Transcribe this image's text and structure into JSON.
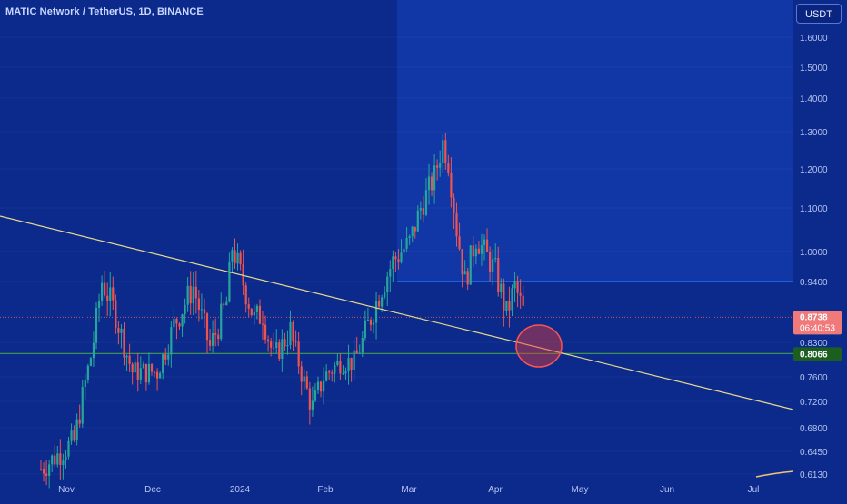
{
  "header": {
    "title": "MATIC Network / TetherUS, 1D, BINANCE",
    "currency_button": "USDT"
  },
  "price_axis": {
    "ticks": [
      "1.6000",
      "1.5000",
      "1.4000",
      "1.3000",
      "1.2000",
      "1.1000",
      "1.0000",
      "0.9400",
      "0.8300",
      "0.7600",
      "0.7200",
      "0.6800",
      "0.6450",
      "0.6130"
    ],
    "current_price": "0.8738",
    "countdown": "06:40:53",
    "support_label": "0.8066"
  },
  "time_axis": {
    "labels": [
      "Nov",
      "Dec",
      "2024",
      "Feb",
      "Mar",
      "Apr",
      "May",
      "Jun",
      "Jul"
    ]
  },
  "colors": {
    "background": "#0b2a8c",
    "highlight_zone": "#1238a8",
    "up_candle": "#26a69a",
    "down_candle": "#ef5350",
    "trendline": "#e8d98a",
    "resistance_line": "#2979ff",
    "support_line": "#2e7d32",
    "support_badge": "#1b5e20",
    "price_badge": "#f07a7a",
    "marker_circle": "#e53935"
  },
  "chart_data": {
    "type": "candlestick",
    "symbol": "MATIC Network / TetherUS",
    "timeframe": "1D",
    "exchange": "BINANCE",
    "scale": "log",
    "y_ticks": [
      1.6,
      1.5,
      1.4,
      1.3,
      1.2,
      1.1,
      1.0,
      0.94,
      0.83,
      0.76,
      0.72,
      0.68,
      0.645,
      0.613
    ],
    "x_labels": [
      "Nov",
      "Dec",
      "2024",
      "Feb",
      "Mar",
      "Apr",
      "May",
      "Jun",
      "Jul"
    ],
    "price_anchors": [
      {
        "date": "2023-10-20",
        "price": 0.62
      },
      {
        "date": "2023-11-01",
        "price": 0.66
      },
      {
        "date": "2023-11-07",
        "price": 0.8
      },
      {
        "date": "2023-11-11",
        "price": 0.94
      },
      {
        "date": "2023-11-16",
        "price": 0.88
      },
      {
        "date": "2023-11-22",
        "price": 0.77
      },
      {
        "date": "2023-12-01",
        "price": 0.77
      },
      {
        "date": "2023-12-07",
        "price": 0.86
      },
      {
        "date": "2023-12-14",
        "price": 0.93
      },
      {
        "date": "2023-12-20",
        "price": 0.82
      },
      {
        "date": "2023-12-26",
        "price": 0.9
      },
      {
        "date": "2023-12-28",
        "price": 1.01
      },
      {
        "date": "2024-01-05",
        "price": 0.87
      },
      {
        "date": "2024-01-08",
        "price": 0.88
      },
      {
        "date": "2024-01-12",
        "price": 0.8
      },
      {
        "date": "2024-01-18",
        "price": 0.85
      },
      {
        "date": "2024-01-23",
        "price": 0.75
      },
      {
        "date": "2024-01-26",
        "price": 0.71
      },
      {
        "date": "2024-01-30",
        "price": 0.76
      },
      {
        "date": "2024-02-05",
        "price": 0.79
      },
      {
        "date": "2024-02-10",
        "price": 0.79
      },
      {
        "date": "2024-02-15",
        "price": 0.86
      },
      {
        "date": "2024-02-20",
        "price": 0.93
      },
      {
        "date": "2024-02-24",
        "price": 0.98
      },
      {
        "date": "2024-03-01",
        "price": 1.02
      },
      {
        "date": "2024-03-05",
        "price": 1.1
      },
      {
        "date": "2024-03-10",
        "price": 1.18
      },
      {
        "date": "2024-03-13",
        "price": 1.27
      },
      {
        "date": "2024-03-15",
        "price": 1.22
      },
      {
        "date": "2024-03-18",
        "price": 1.05
      },
      {
        "date": "2024-03-21",
        "price": 0.94
      },
      {
        "date": "2024-03-25",
        "price": 1.03
      },
      {
        "date": "2024-03-28",
        "price": 1.0
      },
      {
        "date": "2024-04-01",
        "price": 0.96
      },
      {
        "date": "2024-04-05",
        "price": 0.88
      },
      {
        "date": "2024-04-08",
        "price": 0.93
      },
      {
        "date": "2024-04-12",
        "price": 0.87
      }
    ],
    "last_price": 0.8738,
    "horizontal_levels": [
      {
        "price": 0.94,
        "color": "#2979ff"
      },
      {
        "price": 0.8066,
        "color": "#2e7d32"
      }
    ],
    "trendline": [
      {
        "date": "2023-10-20",
        "price": 1.095
      },
      {
        "date": "2024-07-10",
        "price": 0.69
      }
    ]
  }
}
